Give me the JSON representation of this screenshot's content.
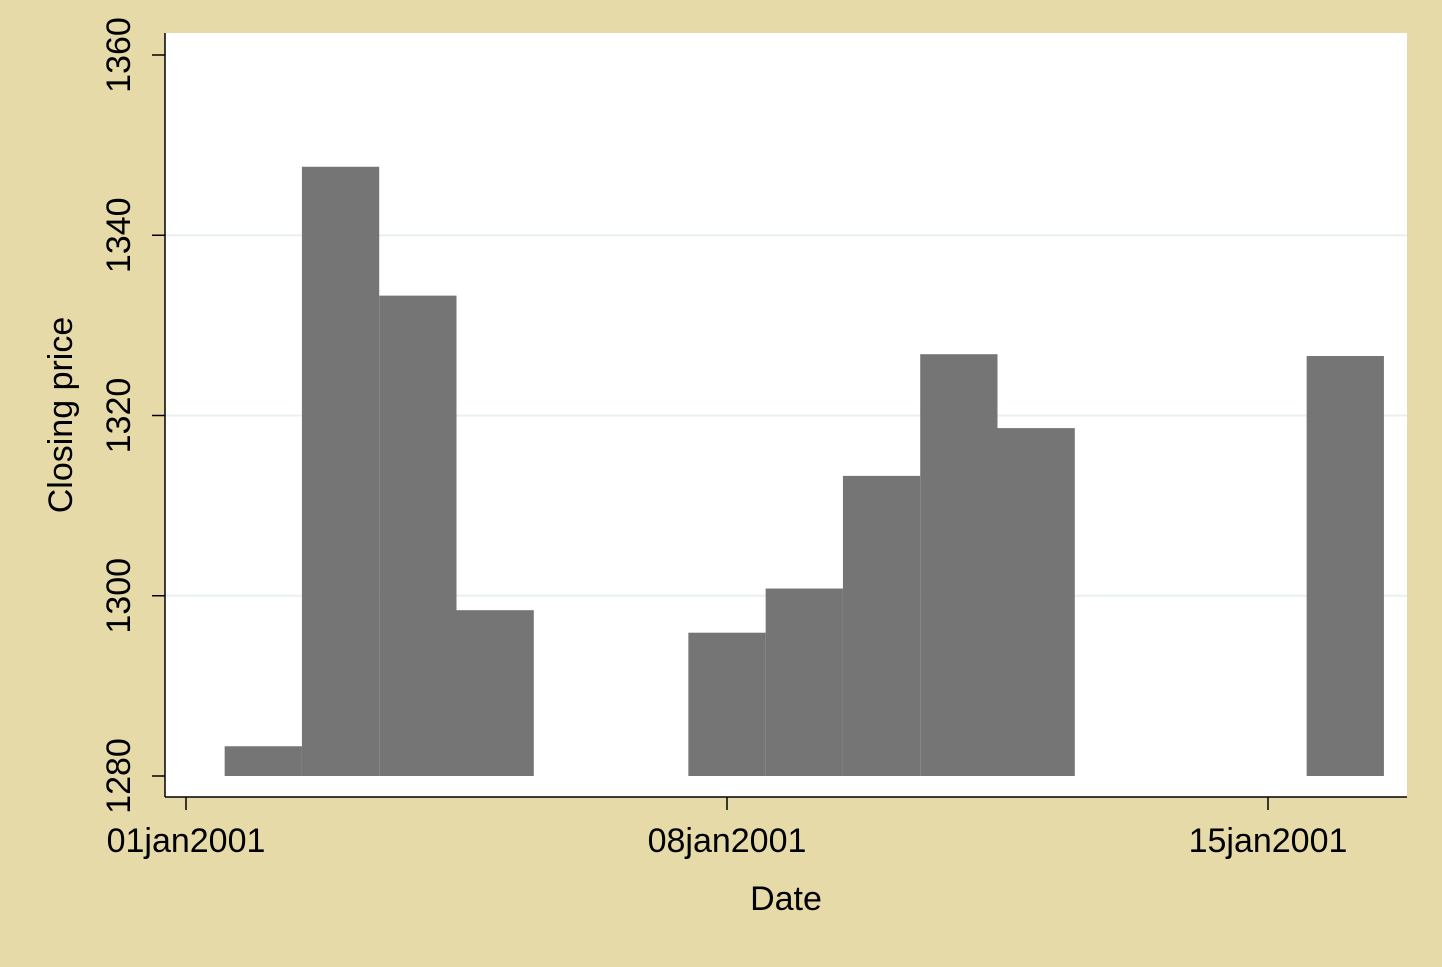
{
  "chart_data": {
    "type": "bar",
    "title": "",
    "xlabel": "Date",
    "ylabel": "Closing price",
    "x": [
      "02jan2001",
      "03jan2001",
      "04jan2001",
      "05jan2001",
      "08jan2001",
      "09jan2001",
      "10jan2001",
      "11jan2001",
      "12jan2001",
      "16jan2001"
    ],
    "values": [
      1283.3,
      1347.6,
      1333.3,
      1298.4,
      1295.9,
      1300.8,
      1313.3,
      1326.8,
      1318.6,
      1326.6
    ],
    "ylim": [
      1280,
      1360
    ],
    "xlim": [
      "01jan2001",
      "17jan2001"
    ],
    "yticks": [
      1280,
      1300,
      1320,
      1340,
      1360
    ],
    "xticks": [
      "01jan2001",
      "08jan2001",
      "15jan2001"
    ],
    "grid": true,
    "colors": {
      "background": "#e6dba8",
      "plot_background": "#ffffff",
      "bar": "#757575",
      "grid": "#e8f0f0"
    }
  }
}
